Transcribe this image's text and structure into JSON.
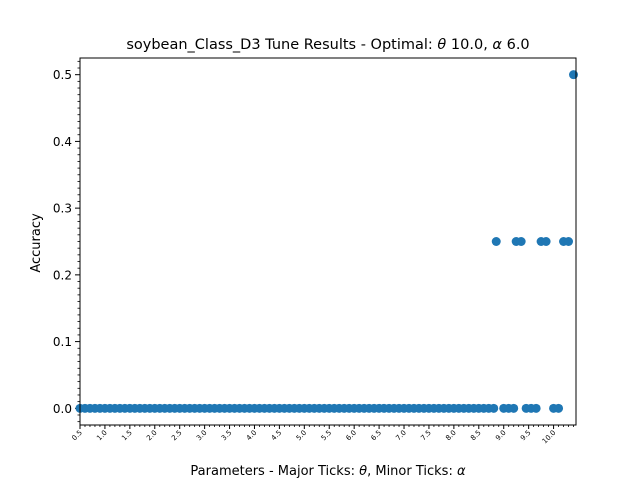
{
  "chart_data": {
    "type": "scatter",
    "title_prefix": "soybean_Class_D3 Tune Results - Optimal: ",
    "title_theta_symbol": "θ",
    "title_theta_value": " 10.0, ",
    "title_alpha_symbol": "α",
    "title_alpha_value": " 6.0",
    "xlabel_prefix": "Parameters - Major Ticks: ",
    "xlabel_theta": "θ",
    "xlabel_middle": ", Minor Ticks: ",
    "xlabel_alpha": "α",
    "ylabel": "Accuracy",
    "xlim": [
      0.5,
      10.45
    ],
    "ylim": [
      -0.025,
      0.525
    ],
    "x_ticks": [
      0.5,
      1.0,
      1.5,
      2.0,
      2.5,
      3.0,
      3.5,
      4.0,
      4.5,
      5.0,
      5.5,
      6.0,
      6.5,
      7.0,
      7.5,
      8.0,
      8.5,
      9.0,
      9.5,
      10.0
    ],
    "x_tick_labels": [
      "0.5",
      "1.0",
      "1.5",
      "2.0",
      "2.5",
      "3.0",
      "3.5",
      "4.0",
      "4.5",
      "5.0",
      "5.5",
      "6.0",
      "6.5",
      "7.0",
      "7.5",
      "8.0",
      "8.5",
      "9.0",
      "9.5",
      "10.0"
    ],
    "y_ticks": [
      0.0,
      0.1,
      0.2,
      0.3,
      0.4,
      0.5
    ],
    "y_tick_labels": [
      "0.0",
      "0.1",
      "0.2",
      "0.3",
      "0.4",
      "0.5"
    ],
    "marker_color": "#1f77b4",
    "grid": false,
    "legend": false,
    "points": [
      {
        "x": 0.5,
        "y": 0
      },
      {
        "x": 0.6,
        "y": 0
      },
      {
        "x": 0.7,
        "y": 0
      },
      {
        "x": 0.8,
        "y": 0
      },
      {
        "x": 0.9,
        "y": 0
      },
      {
        "x": 1.0,
        "y": 0
      },
      {
        "x": 1.1,
        "y": 0
      },
      {
        "x": 1.2,
        "y": 0
      },
      {
        "x": 1.3,
        "y": 0
      },
      {
        "x": 1.4,
        "y": 0
      },
      {
        "x": 1.5,
        "y": 0
      },
      {
        "x": 1.6,
        "y": 0
      },
      {
        "x": 1.7,
        "y": 0
      },
      {
        "x": 1.8,
        "y": 0
      },
      {
        "x": 1.9,
        "y": 0
      },
      {
        "x": 2.0,
        "y": 0
      },
      {
        "x": 2.1,
        "y": 0
      },
      {
        "x": 2.2,
        "y": 0
      },
      {
        "x": 2.3,
        "y": 0
      },
      {
        "x": 2.4,
        "y": 0
      },
      {
        "x": 2.5,
        "y": 0
      },
      {
        "x": 2.6,
        "y": 0
      },
      {
        "x": 2.7,
        "y": 0
      },
      {
        "x": 2.8,
        "y": 0
      },
      {
        "x": 2.9,
        "y": 0
      },
      {
        "x": 3.0,
        "y": 0
      },
      {
        "x": 3.1,
        "y": 0
      },
      {
        "x": 3.2,
        "y": 0
      },
      {
        "x": 3.3,
        "y": 0
      },
      {
        "x": 3.4,
        "y": 0
      },
      {
        "x": 3.5,
        "y": 0
      },
      {
        "x": 3.6,
        "y": 0
      },
      {
        "x": 3.7,
        "y": 0
      },
      {
        "x": 3.8,
        "y": 0
      },
      {
        "x": 3.9,
        "y": 0
      },
      {
        "x": 4.0,
        "y": 0
      },
      {
        "x": 4.1,
        "y": 0
      },
      {
        "x": 4.2,
        "y": 0
      },
      {
        "x": 4.3,
        "y": 0
      },
      {
        "x": 4.4,
        "y": 0
      },
      {
        "x": 4.5,
        "y": 0
      },
      {
        "x": 4.6,
        "y": 0
      },
      {
        "x": 4.7,
        "y": 0
      },
      {
        "x": 4.8,
        "y": 0
      },
      {
        "x": 4.9,
        "y": 0
      },
      {
        "x": 5.0,
        "y": 0
      },
      {
        "x": 5.1,
        "y": 0
      },
      {
        "x": 5.2,
        "y": 0
      },
      {
        "x": 5.3,
        "y": 0
      },
      {
        "x": 5.4,
        "y": 0
      },
      {
        "x": 5.5,
        "y": 0
      },
      {
        "x": 5.6,
        "y": 0
      },
      {
        "x": 5.7,
        "y": 0
      },
      {
        "x": 5.8,
        "y": 0
      },
      {
        "x": 5.9,
        "y": 0
      },
      {
        "x": 6.0,
        "y": 0
      },
      {
        "x": 6.1,
        "y": 0
      },
      {
        "x": 6.2,
        "y": 0
      },
      {
        "x": 6.3,
        "y": 0
      },
      {
        "x": 6.4,
        "y": 0
      },
      {
        "x": 6.5,
        "y": 0
      },
      {
        "x": 6.6,
        "y": 0
      },
      {
        "x": 6.7,
        "y": 0
      },
      {
        "x": 6.8,
        "y": 0
      },
      {
        "x": 6.9,
        "y": 0
      },
      {
        "x": 7.0,
        "y": 0
      },
      {
        "x": 7.1,
        "y": 0
      },
      {
        "x": 7.2,
        "y": 0
      },
      {
        "x": 7.3,
        "y": 0
      },
      {
        "x": 7.4,
        "y": 0
      },
      {
        "x": 7.5,
        "y": 0
      },
      {
        "x": 7.6,
        "y": 0
      },
      {
        "x": 7.7,
        "y": 0
      },
      {
        "x": 7.8,
        "y": 0
      },
      {
        "x": 7.9,
        "y": 0
      },
      {
        "x": 8.0,
        "y": 0
      },
      {
        "x": 8.1,
        "y": 0
      },
      {
        "x": 8.2,
        "y": 0
      },
      {
        "x": 8.3,
        "y": 0
      },
      {
        "x": 8.4,
        "y": 0
      },
      {
        "x": 8.5,
        "y": 0
      },
      {
        "x": 8.6,
        "y": 0
      },
      {
        "x": 8.7,
        "y": 0
      },
      {
        "x": 8.8,
        "y": 0
      },
      {
        "x": 8.85,
        "y": 0.25
      },
      {
        "x": 9.0,
        "y": 0
      },
      {
        "x": 9.1,
        "y": 0
      },
      {
        "x": 9.2,
        "y": 0
      },
      {
        "x": 9.25,
        "y": 0.25
      },
      {
        "x": 9.35,
        "y": 0.25
      },
      {
        "x": 9.45,
        "y": 0
      },
      {
        "x": 9.55,
        "y": 0
      },
      {
        "x": 9.65,
        "y": 0
      },
      {
        "x": 9.75,
        "y": 0.25
      },
      {
        "x": 9.85,
        "y": 0.25
      },
      {
        "x": 10.0,
        "y": 0
      },
      {
        "x": 10.1,
        "y": 0
      },
      {
        "x": 10.2,
        "y": 0.25
      },
      {
        "x": 10.3,
        "y": 0.25
      },
      {
        "x": 10.4,
        "y": 0.5
      }
    ]
  }
}
